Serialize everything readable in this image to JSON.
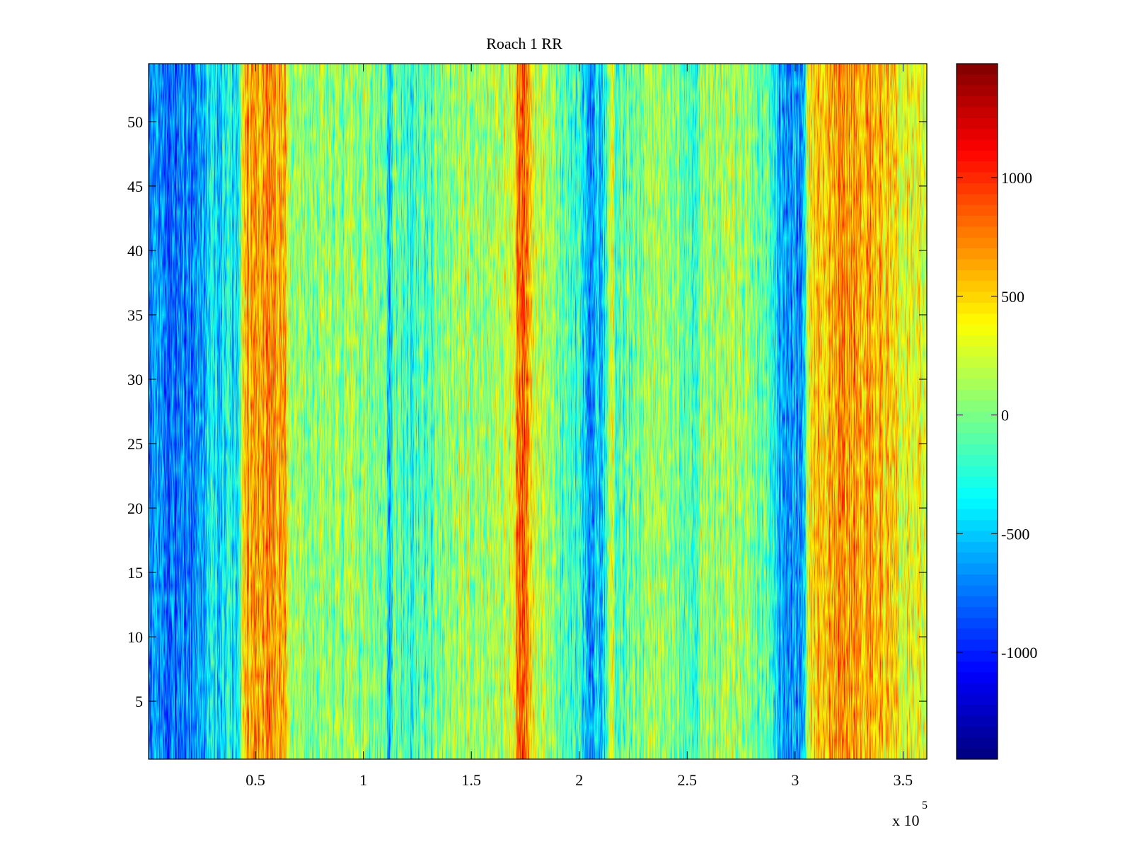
{
  "chart_data": {
    "type": "heatmap",
    "title": "Roach 1 RR",
    "xlabel": "",
    "ylabel": "",
    "x_multiplier_label": "x 10",
    "x_multiplier_exponent": "5",
    "xlim": [
      500,
      361000
    ],
    "ylim": [
      0.5,
      54.5
    ],
    "clim": [
      -1450,
      1480
    ],
    "colormap": "jet",
    "grid": false,
    "x_ticks": [
      {
        "value": 50000,
        "label": "0.5"
      },
      {
        "value": 100000,
        "label": "1"
      },
      {
        "value": 150000,
        "label": "1.5"
      },
      {
        "value": 200000,
        "label": "2"
      },
      {
        "value": 250000,
        "label": "2.5"
      },
      {
        "value": 300000,
        "label": "3"
      },
      {
        "value": 350000,
        "label": "3.5"
      }
    ],
    "y_ticks": [
      {
        "value": 5,
        "label": "5"
      },
      {
        "value": 10,
        "label": "10"
      },
      {
        "value": 15,
        "label": "15"
      },
      {
        "value": 20,
        "label": "20"
      },
      {
        "value": 25,
        "label": "25"
      },
      {
        "value": 30,
        "label": "30"
      },
      {
        "value": 35,
        "label": "35"
      },
      {
        "value": 40,
        "label": "40"
      },
      {
        "value": 45,
        "label": "45"
      },
      {
        "value": 50,
        "label": "50"
      }
    ],
    "colorbar_ticks": [
      {
        "value": -1000,
        "label": "-1000"
      },
      {
        "value": -500,
        "label": "-500"
      },
      {
        "value": 0,
        "label": "0"
      },
      {
        "value": 500,
        "label": "500"
      },
      {
        "value": 1000,
        "label": "1000"
      }
    ],
    "rows": 54,
    "column_profile": [
      {
        "x": 1000,
        "value": -700
      },
      {
        "x": 10000,
        "value": -800
      },
      {
        "x": 20000,
        "value": -700
      },
      {
        "x": 30000,
        "value": -450
      },
      {
        "x": 42000,
        "value": -350
      },
      {
        "x": 45000,
        "value": 550
      },
      {
        "x": 55000,
        "value": 700
      },
      {
        "x": 64000,
        "value": 600
      },
      {
        "x": 66000,
        "value": 150
      },
      {
        "x": 80000,
        "value": 50
      },
      {
        "x": 100000,
        "value": 100
      },
      {
        "x": 110000,
        "value": -100
      },
      {
        "x": 112000,
        "value": -500
      },
      {
        "x": 114000,
        "value": -50
      },
      {
        "x": 125000,
        "value": -200
      },
      {
        "x": 140000,
        "value": 100
      },
      {
        "x": 160000,
        "value": 150
      },
      {
        "x": 170000,
        "value": 350
      },
      {
        "x": 172000,
        "value": 850
      },
      {
        "x": 176000,
        "value": 850
      },
      {
        "x": 178000,
        "value": 250
      },
      {
        "x": 190000,
        "value": 0
      },
      {
        "x": 200000,
        "value": -250
      },
      {
        "x": 206000,
        "value": -600
      },
      {
        "x": 210000,
        "value": -500
      },
      {
        "x": 213000,
        "value": -200
      },
      {
        "x": 215000,
        "value": 500
      },
      {
        "x": 217000,
        "value": -100
      },
      {
        "x": 230000,
        "value": 50
      },
      {
        "x": 245000,
        "value": 100
      },
      {
        "x": 252000,
        "value": -300
      },
      {
        "x": 256000,
        "value": 100
      },
      {
        "x": 275000,
        "value": 100
      },
      {
        "x": 290000,
        "value": -100
      },
      {
        "x": 292000,
        "value": -600
      },
      {
        "x": 304000,
        "value": -550
      },
      {
        "x": 306000,
        "value": 450
      },
      {
        "x": 320000,
        "value": 650
      },
      {
        "x": 335000,
        "value": 650
      },
      {
        "x": 348000,
        "value": 450
      },
      {
        "x": 361000,
        "value": 300
      }
    ]
  }
}
